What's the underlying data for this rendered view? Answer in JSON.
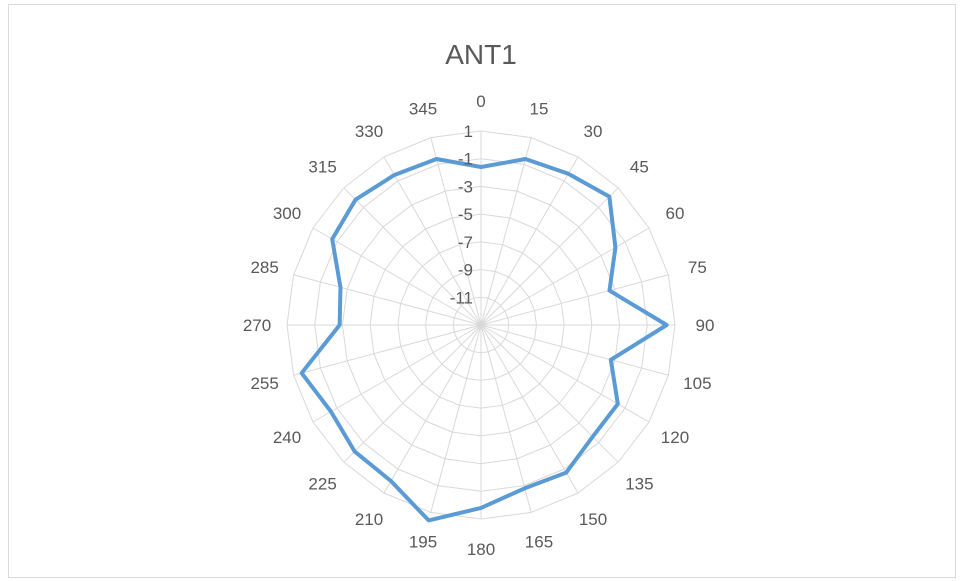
{
  "chart_data": {
    "type": "radar",
    "title": "ANT1",
    "categories": [
      "0",
      "15",
      "30",
      "45",
      "60",
      "75",
      "90",
      "105",
      "120",
      "135",
      "150",
      "165",
      "180",
      "195",
      "210",
      "225",
      "240",
      "255",
      "270",
      "285",
      "300",
      "315",
      "330",
      "345"
    ],
    "radial_ticks": [
      "-11",
      "-9",
      "-7",
      "-5",
      "-3",
      "-1",
      "1"
    ],
    "rmin": -13,
    "rmax": 1,
    "grid": true,
    "legend": "none",
    "series": [
      {
        "color": "#5b9bd5",
        "values": [
          -1.6,
          -0.6,
          -0.4,
          0.1,
          -1.8,
          -3.4,
          0.4,
          -3.3,
          -1.6,
          -1.6,
          -0.7,
          -0.8,
          0.2,
          1.6,
          0.0,
          -0.1,
          -0.5,
          0.4,
          -2.8,
          -2.5,
          -0.6,
          -0.2,
          -0.5,
          -0.6
        ]
      }
    ]
  }
}
